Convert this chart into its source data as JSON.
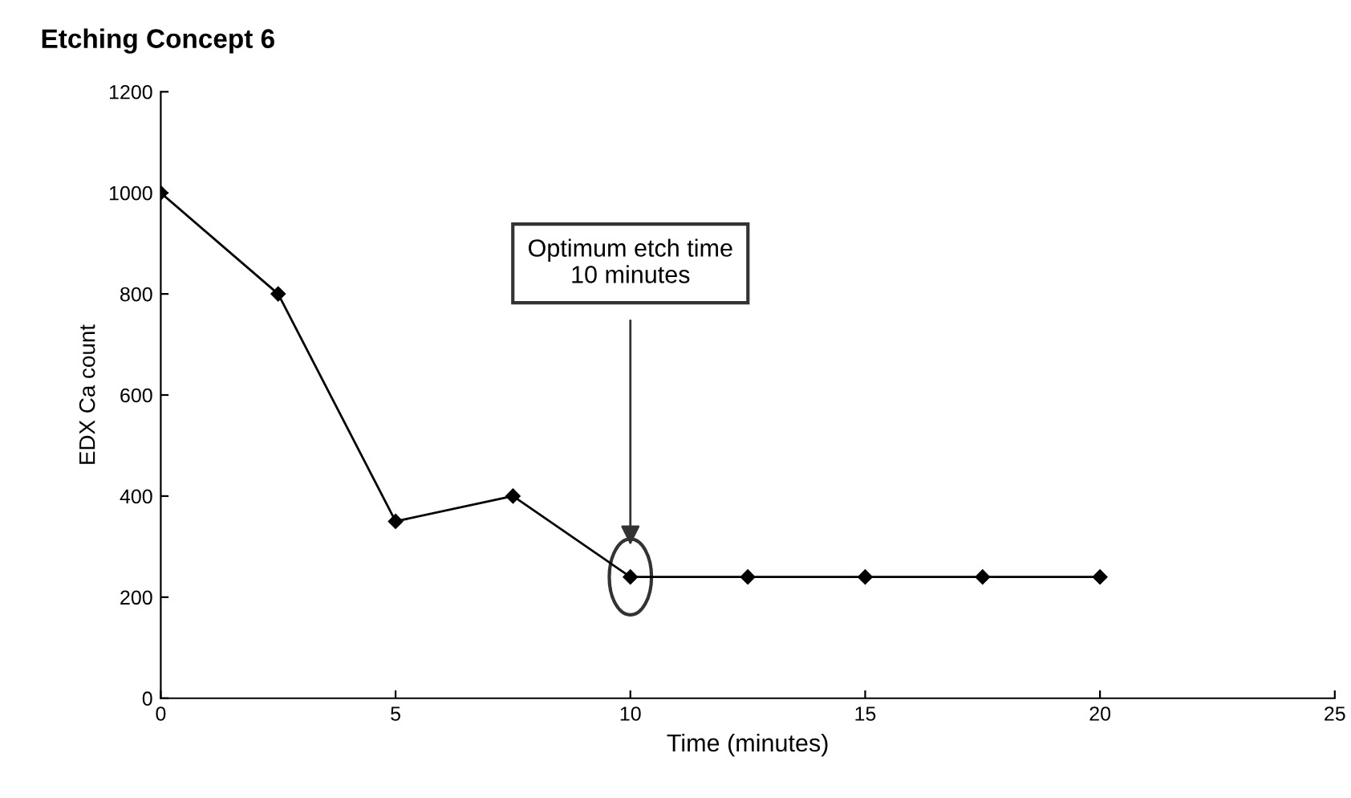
{
  "chart_data": {
    "type": "line",
    "title": "Etching Concept 6",
    "xlabel": "Time (minutes)",
    "ylabel": "EDX Ca count",
    "x": [
      0,
      2.5,
      5,
      7.5,
      10,
      12.5,
      15,
      17.5,
      20
    ],
    "series": [
      {
        "color": "#000000",
        "values": [
          1000,
          800,
          350,
          400,
          240,
          240,
          240,
          240,
          240
        ]
      }
    ],
    "xlim": [
      0,
      25
    ],
    "xticks": [
      0,
      5,
      10,
      15,
      20,
      25
    ],
    "ylim": [
      0,
      1200
    ],
    "yticks": [
      0,
      200,
      400,
      600,
      800,
      1000,
      1200
    ],
    "grid": false,
    "legend": false,
    "marker": "diamond",
    "line_style": "solid",
    "annotations": [
      "Optimum etch time\n10 minutes"
    ]
  }
}
